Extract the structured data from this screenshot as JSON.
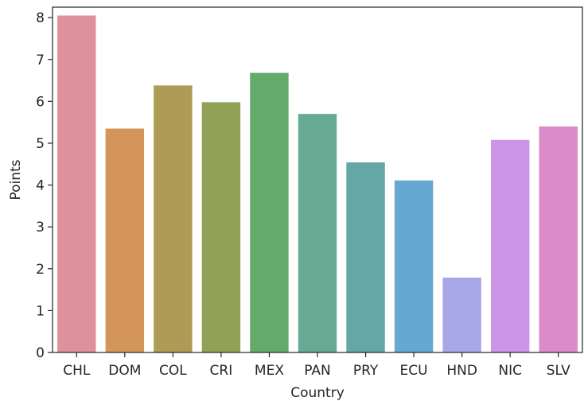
{
  "chart_data": {
    "type": "bar",
    "title": "",
    "xlabel": "Country",
    "ylabel": "Points",
    "ylim": [
      0,
      8.25
    ],
    "yticks": [
      "0",
      "1",
      "2",
      "3",
      "4",
      "5",
      "6",
      "7",
      "8"
    ],
    "categories": [
      "CHL",
      "DOM",
      "COL",
      "CRI",
      "MEX",
      "PAN",
      "PRY",
      "ECU",
      "HND",
      "NIC",
      "SLV"
    ],
    "values": [
      8.05,
      5.35,
      6.38,
      5.98,
      6.68,
      5.7,
      4.54,
      4.11,
      1.79,
      5.08,
      5.4
    ],
    "colors": [
      "#dc919c",
      "#d4955a",
      "#ae9b56",
      "#91a257",
      "#64ab6b",
      "#66aa93",
      "#65a6a6",
      "#65a9d0",
      "#a9a8e6",
      "#cd95e6",
      "#db8cc8"
    ],
    "grid": false,
    "legend": "none"
  }
}
